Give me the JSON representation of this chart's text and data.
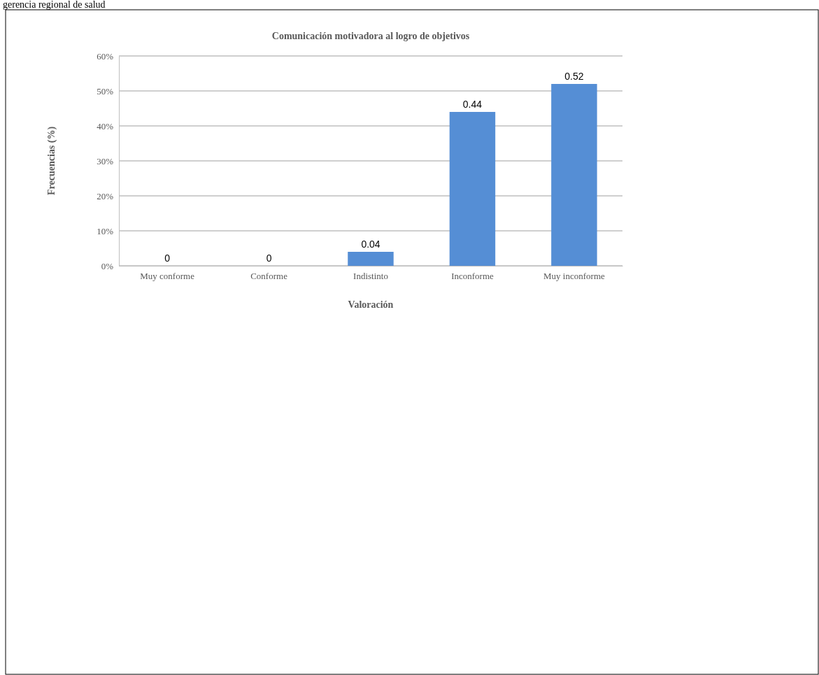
{
  "chart_data": {
    "type": "bar",
    "title": "Comunicación motivadora al logro de objetivos",
    "xlabel": "Valoración",
    "ylabel": "Frecuencias (%)",
    "annotations": [
      "gerencia regional de salud"
    ],
    "categories": [
      "Muy conforme",
      "Conforme",
      "Indistinto",
      "Inconforme",
      "Muy inconforme"
    ],
    "values": [
      0,
      0,
      0.04,
      0.44,
      0.52
    ],
    "data_labels": true,
    "color": "#558ed5",
    "ylim": [
      0,
      0.6
    ],
    "yticks": [
      {
        "value": 0,
        "label": "0%"
      },
      {
        "value": 0.1,
        "label": "10%"
      },
      {
        "value": 0.2,
        "label": "20%"
      },
      {
        "value": 0.3,
        "label": "30%"
      },
      {
        "value": 0.4,
        "label": "40%"
      },
      {
        "value": 0.5,
        "label": "50%"
      },
      {
        "value": 0.6,
        "label": "60%"
      }
    ],
    "grid": "y"
  }
}
